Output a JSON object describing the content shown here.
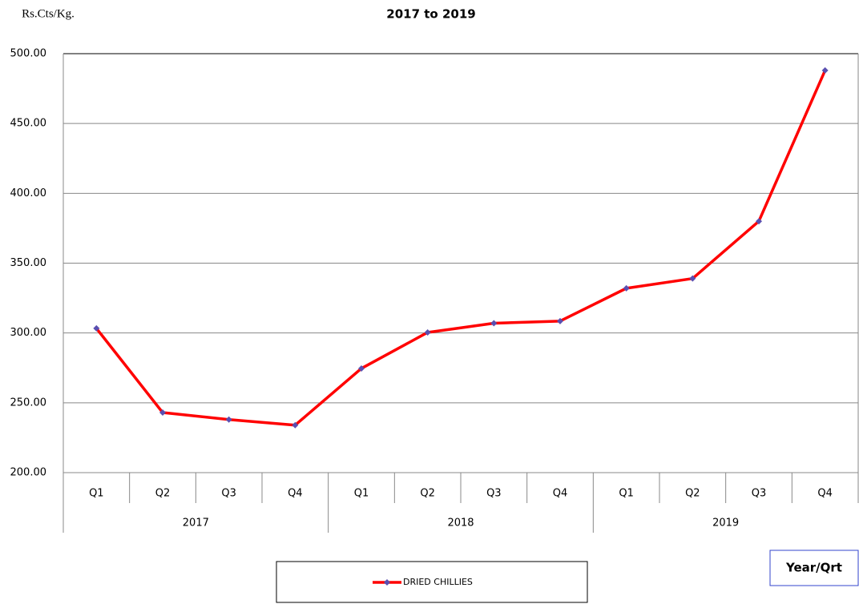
{
  "chart_data": {
    "type": "line",
    "title": "2017 to 2019",
    "y_label": "Rs.Cts/Kg.",
    "x_label": "Year/Qrt",
    "categories": [
      "Q1",
      "Q2",
      "Q3",
      "Q4",
      "Q1",
      "Q2",
      "Q3",
      "Q4",
      "Q1",
      "Q2",
      "Q3",
      "Q4"
    ],
    "years": [
      "2017",
      "2018",
      "2019"
    ],
    "series": [
      {
        "name": "DRIED CHILLIES",
        "color": "#ff0000",
        "marker_color": "#5a4fb0",
        "values": [
          303.3,
          243,
          238,
          234,
          274.6,
          300.4,
          307,
          308.5,
          332,
          339,
          380,
          488
        ]
      }
    ],
    "ylim": [
      200,
      500
    ],
    "yticks": [
      {
        "value": 200,
        "label": "200.00"
      },
      {
        "value": 250,
        "label": "250.00"
      },
      {
        "value": 300,
        "label": "300.00"
      },
      {
        "value": 350,
        "label": "350.00"
      },
      {
        "value": 400,
        "label": "400.00"
      },
      {
        "value": 450,
        "label": "450.00"
      },
      {
        "value": 500,
        "label": "500.00"
      }
    ],
    "grid": true
  }
}
